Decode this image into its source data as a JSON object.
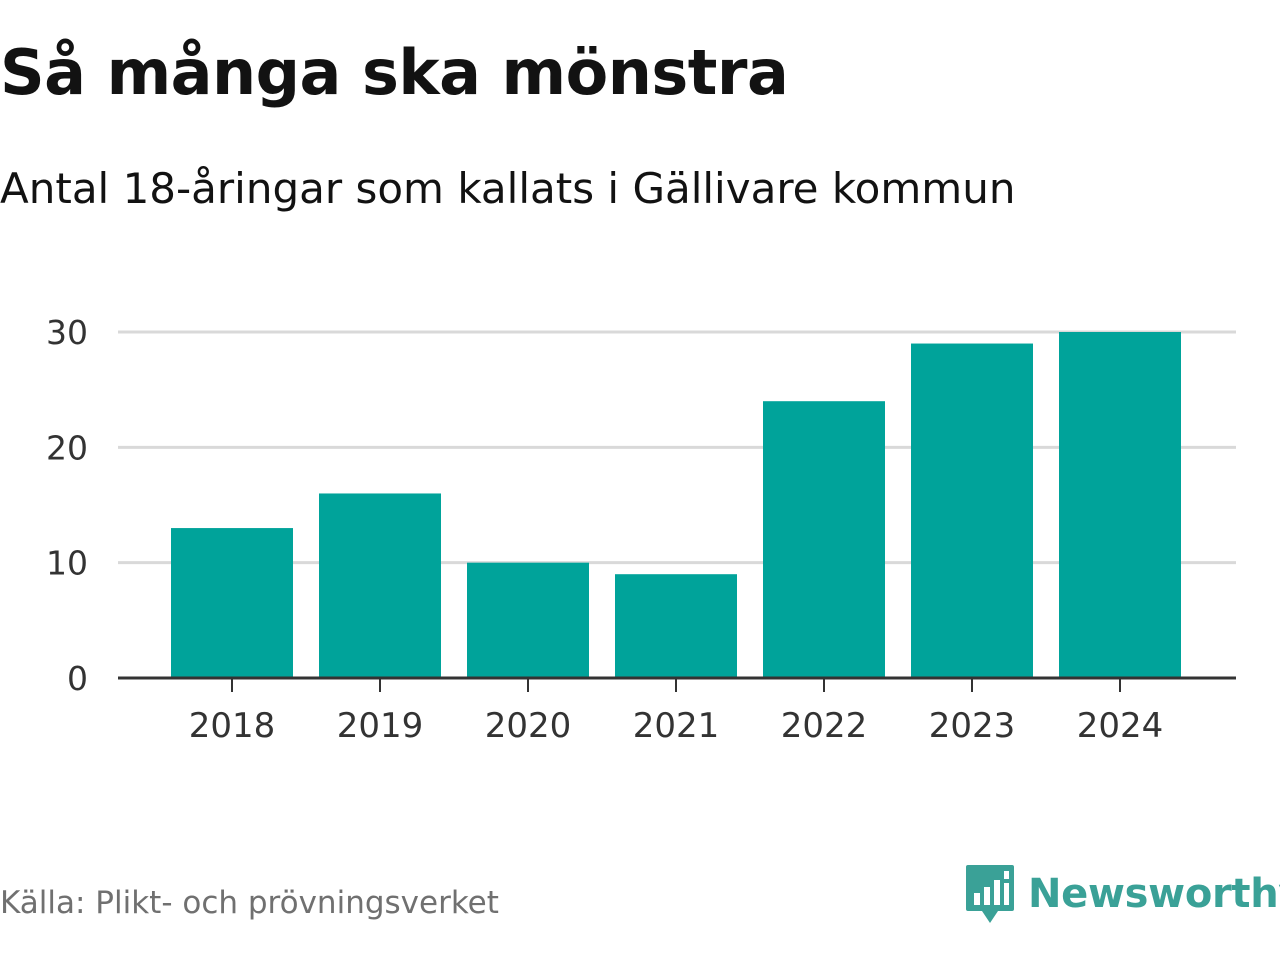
{
  "header": {
    "title": "Så många ska mönstra",
    "subtitle": "Antal 18-åringar som kallats i Gällivare kommun"
  },
  "footer": {
    "source": "Källa: Plikt- och prövningsverket",
    "brand": "Newsworthy",
    "brand_icon": "newsworthy-chart-bubble-icon"
  },
  "colors": {
    "bar": "#00a39a",
    "grid": "#d9d9d9",
    "axis": "#333333",
    "brand": "#3aa197"
  },
  "chart_data": {
    "type": "bar",
    "categories": [
      "2018",
      "2019",
      "2020",
      "2021",
      "2022",
      "2023",
      "2024"
    ],
    "values": [
      13,
      16,
      10,
      9,
      24,
      29,
      30
    ],
    "ylim": [
      0,
      30
    ],
    "yticks": [
      0,
      10,
      20,
      30
    ],
    "grid": true,
    "xlabel": "",
    "ylabel": ""
  }
}
